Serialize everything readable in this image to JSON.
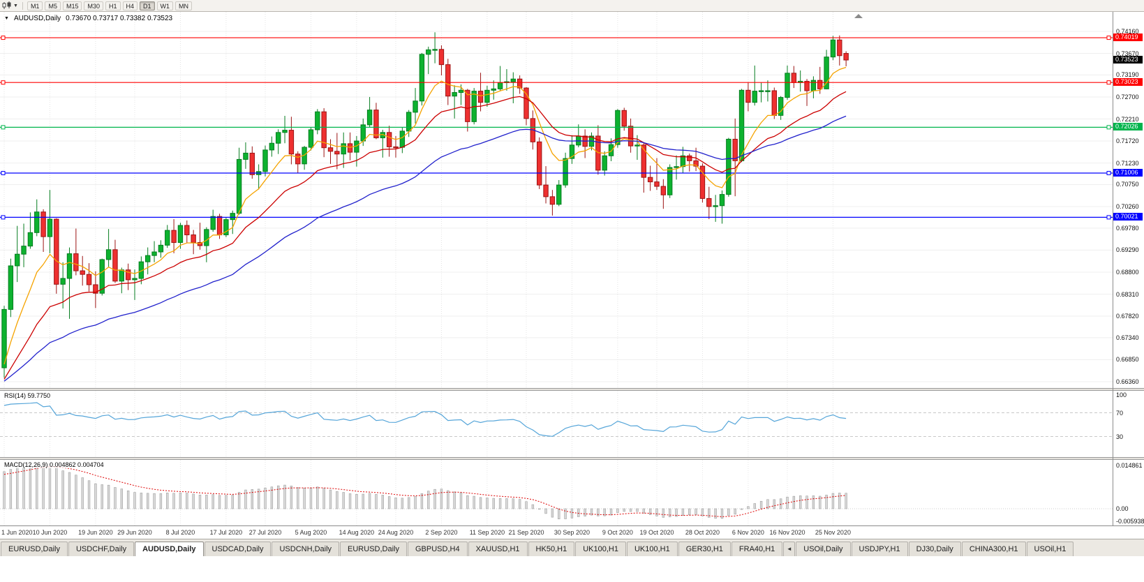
{
  "toolbar": {
    "chart_type_icon": "candlestick-chart-icon",
    "dropdown_glyph": "▼",
    "timeframes": [
      "M1",
      "M5",
      "M15",
      "M30",
      "H1",
      "H4",
      "D1",
      "W1",
      "MN"
    ],
    "active_timeframe": "D1"
  },
  "chart_header": {
    "marker": "▼",
    "symbol": "AUDUSD,Daily",
    "ohlc": "0.73670 0.73717 0.73382 0.73523"
  },
  "price_axis": {
    "ticks": [
      "0.74160",
      "0.73670",
      "0.73190",
      "0.72700",
      "0.72210",
      "0.71720",
      "0.71230",
      "0.70750",
      "0.70260",
      "0.69780",
      "0.69290",
      "0.68800",
      "0.68310",
      "0.67820",
      "0.67340",
      "0.66850",
      "0.66360"
    ]
  },
  "hlines": [
    {
      "value": 0.74019,
      "label": "0.74019",
      "color": "#ff0000"
    },
    {
      "value": 0.73023,
      "label": "0.73023",
      "color": "#ff0000"
    },
    {
      "value": 0.72026,
      "label": "0.72026",
      "color": "#00b44c"
    },
    {
      "value": 0.71006,
      "label": "0.71006",
      "color": "#0000ff"
    },
    {
      "value": 0.70021,
      "label": "0.70021",
      "color": "#0000ff"
    }
  ],
  "price_tag": {
    "value": 0.73523,
    "label": "0.73523",
    "bg": "#000000"
  },
  "rsi_panel": {
    "label": "RSI(14) 59.7750",
    "axis": [
      "100",
      "70",
      "30"
    ],
    "line_color": "#55a5d9"
  },
  "macd_panel": {
    "label": "MACD(12,26,9) 0.004862 0.004704",
    "axis": [
      "0.014861",
      "0.00",
      "-0.005938"
    ]
  },
  "date_axis": {
    "labels": [
      "1 Jun 2020",
      "10 Jun 2020",
      "19 Jun 2020",
      "29 Jun 2020",
      "8 Jul 2020",
      "17 Jul 2020",
      "27 Jul 2020",
      "5 Aug 2020",
      "14 Aug 2020",
      "24 Aug 2020",
      "2 Sep 2020",
      "11 Sep 2020",
      "21 Sep 2020",
      "30 Sep 2020",
      "9 Oct 2020",
      "19 Oct 2020",
      "28 Oct 2020",
      "6 Nov 2020",
      "16 Nov 2020",
      "25 Nov 2020"
    ],
    "tick_indices": [
      0,
      7,
      14,
      20,
      27,
      34,
      40,
      47,
      54,
      60,
      67,
      74,
      80,
      87,
      94,
      100,
      107,
      114,
      120,
      127
    ]
  },
  "tabs": {
    "items": [
      {
        "label": "EURUSD,Daily"
      },
      {
        "label": "USDCHF,Daily"
      },
      {
        "label": "AUDUSD,Daily",
        "active": true
      },
      {
        "label": "USDCAD,Daily"
      },
      {
        "label": "USDCNH,Daily"
      },
      {
        "label": "EURUSD,Daily"
      },
      {
        "label": "GBPUSD,H4"
      },
      {
        "label": "XAUUSD,H1"
      },
      {
        "label": "HK50,H1"
      },
      {
        "label": "UK100,H1"
      },
      {
        "label": "UK100,H1"
      },
      {
        "label": "GER30,H1"
      },
      {
        "label": "FRA40,H1"
      },
      {
        "label": "◄",
        "scroll": true
      },
      {
        "label": "USOil,Daily"
      },
      {
        "label": "USDJPY,H1"
      },
      {
        "label": "DJ30,Daily"
      },
      {
        "label": "CHINA300,H1"
      },
      {
        "label": "USOil,H1"
      }
    ]
  },
  "chart_data": {
    "type": "candlestick",
    "symbol": "AUDUSD",
    "timeframe": "Daily",
    "first_candle_date": "1 Jun 2020",
    "last_candle_date": "27 Nov 2020",
    "visible_price_range": {
      "top_tick": 0.7416,
      "bottom_tick": 0.6636
    },
    "current_ohlc": {
      "open": 0.7367,
      "high": 0.73717,
      "low": 0.73382,
      "close": 0.73523
    },
    "overlays": [
      {
        "name": "ma-fast",
        "type": "ema",
        "period": 8,
        "color": "#f5a300"
      },
      {
        "name": "ma-mid",
        "type": "ema",
        "period": 20,
        "color": "#cc0000"
      },
      {
        "name": "ma-slow",
        "type": "ema",
        "period": 45,
        "color": "#2121cc"
      }
    ],
    "indicators": [
      {
        "name": "RSI",
        "params": "14",
        "current": "59.7750",
        "levels": [
          100,
          70,
          30
        ]
      },
      {
        "name": "MACD",
        "params": "12,26,9",
        "current_main": "0.004862",
        "current_signal": "0.004704",
        "axis_max": 0.014861,
        "axis_min": -0.005938
      }
    ],
    "candles": [
      [
        0.6667,
        0.6805,
        0.6645,
        0.6797
      ],
      [
        0.6797,
        0.691,
        0.678,
        0.6894
      ],
      [
        0.6894,
        0.6983,
        0.6858,
        0.692
      ],
      [
        0.692,
        0.6988,
        0.6891,
        0.6938
      ],
      [
        0.6938,
        0.7013,
        0.6932,
        0.6968
      ],
      [
        0.6968,
        0.7042,
        0.696,
        0.7014
      ],
      [
        0.7014,
        0.702,
        0.6925,
        0.6959
      ],
      [
        0.6959,
        0.7063,
        0.6922,
        0.6998
      ],
      [
        0.6998,
        0.7,
        0.6832,
        0.6853
      ],
      [
        0.6853,
        0.6902,
        0.6799,
        0.6866
      ],
      [
        0.6866,
        0.6935,
        0.6776,
        0.6921
      ],
      [
        0.6921,
        0.6977,
        0.6873,
        0.6883
      ],
      [
        0.6883,
        0.6916,
        0.685,
        0.6875
      ],
      [
        0.6875,
        0.69,
        0.6837,
        0.6852
      ],
      [
        0.6852,
        0.6882,
        0.68,
        0.6833
      ],
      [
        0.6833,
        0.691,
        0.6828,
        0.6908
      ],
      [
        0.6908,
        0.6976,
        0.689,
        0.693
      ],
      [
        0.693,
        0.6952,
        0.6856,
        0.686
      ],
      [
        0.686,
        0.689,
        0.6833,
        0.6885
      ],
      [
        0.6885,
        0.6899,
        0.684,
        0.6863
      ],
      [
        0.6863,
        0.6886,
        0.6818,
        0.6866
      ],
      [
        0.6866,
        0.6915,
        0.6853,
        0.6903
      ],
      [
        0.6903,
        0.6935,
        0.6875,
        0.6917
      ],
      [
        0.6917,
        0.6949,
        0.6902,
        0.6925
      ],
      [
        0.6925,
        0.6951,
        0.6912,
        0.694
      ],
      [
        0.694,
        0.6985,
        0.6934,
        0.6973
      ],
      [
        0.6973,
        0.6998,
        0.6922,
        0.6946
      ],
      [
        0.6946,
        0.699,
        0.6932,
        0.6984
      ],
      [
        0.6984,
        0.6995,
        0.6945,
        0.6963
      ],
      [
        0.6963,
        0.6974,
        0.692,
        0.6946
      ],
      [
        0.6946,
        0.699,
        0.693,
        0.6939
      ],
      [
        0.6939,
        0.698,
        0.6902,
        0.6975
      ],
      [
        0.6975,
        0.7019,
        0.697,
        0.7004
      ],
      [
        0.7004,
        0.701,
        0.6954,
        0.6963
      ],
      [
        0.6963,
        0.7002,
        0.6958,
        0.6997
      ],
      [
        0.6997,
        0.7017,
        0.6965,
        0.7011
      ],
      [
        0.7011,
        0.7157,
        0.7008,
        0.7131
      ],
      [
        0.7131,
        0.7169,
        0.711,
        0.7145
      ],
      [
        0.7145,
        0.716,
        0.7088,
        0.7097
      ],
      [
        0.7097,
        0.712,
        0.7064,
        0.7104
      ],
      [
        0.7104,
        0.7162,
        0.7093,
        0.7152
      ],
      [
        0.7152,
        0.7182,
        0.7137,
        0.7167
      ],
      [
        0.7167,
        0.7198,
        0.7143,
        0.7191
      ],
      [
        0.7191,
        0.7228,
        0.7167,
        0.7196
      ],
      [
        0.7196,
        0.7226,
        0.712,
        0.7143
      ],
      [
        0.7143,
        0.7149,
        0.71,
        0.7121
      ],
      [
        0.7121,
        0.7161,
        0.7108,
        0.7158
      ],
      [
        0.7158,
        0.7202,
        0.7151,
        0.7197
      ],
      [
        0.7197,
        0.7243,
        0.7187,
        0.7237
      ],
      [
        0.7237,
        0.7245,
        0.7136,
        0.7157
      ],
      [
        0.7157,
        0.7176,
        0.7121,
        0.7149
      ],
      [
        0.7149,
        0.719,
        0.7109,
        0.7143
      ],
      [
        0.7143,
        0.7191,
        0.7112,
        0.7166
      ],
      [
        0.7166,
        0.7191,
        0.7129,
        0.7147
      ],
      [
        0.7147,
        0.7183,
        0.7115,
        0.7172
      ],
      [
        0.7172,
        0.7222,
        0.7161,
        0.7208
      ],
      [
        0.7208,
        0.727,
        0.7202,
        0.7241
      ],
      [
        0.7241,
        0.7257,
        0.7176,
        0.7179
      ],
      [
        0.7179,
        0.7197,
        0.7135,
        0.7191
      ],
      [
        0.7191,
        0.7206,
        0.7137,
        0.7159
      ],
      [
        0.7159,
        0.7183,
        0.7135,
        0.7158
      ],
      [
        0.7158,
        0.7203,
        0.7145,
        0.7194
      ],
      [
        0.7194,
        0.7241,
        0.7181,
        0.7236
      ],
      [
        0.7236,
        0.729,
        0.7211,
        0.7261
      ],
      [
        0.7261,
        0.7368,
        0.7251,
        0.7365
      ],
      [
        0.7365,
        0.7382,
        0.7321,
        0.7375
      ],
      [
        0.7375,
        0.7414,
        0.7345,
        0.7376
      ],
      [
        0.7376,
        0.7385,
        0.7318,
        0.7342
      ],
      [
        0.7342,
        0.7355,
        0.7252,
        0.7272
      ],
      [
        0.7272,
        0.7296,
        0.7222,
        0.728
      ],
      [
        0.728,
        0.7298,
        0.7252,
        0.7285
      ],
      [
        0.7285,
        0.7288,
        0.7193,
        0.7215
      ],
      [
        0.7215,
        0.729,
        0.7209,
        0.7283
      ],
      [
        0.7283,
        0.7324,
        0.7238,
        0.7258
      ],
      [
        0.7258,
        0.7295,
        0.7248,
        0.7285
      ],
      [
        0.7285,
        0.7307,
        0.7264,
        0.7288
      ],
      [
        0.7288,
        0.7339,
        0.7283,
        0.7302
      ],
      [
        0.7302,
        0.7332,
        0.7284,
        0.7304
      ],
      [
        0.7304,
        0.7325,
        0.7256,
        0.731
      ],
      [
        0.731,
        0.7318,
        0.7277,
        0.729
      ],
      [
        0.729,
        0.7292,
        0.7207,
        0.7222
      ],
      [
        0.7222,
        0.724,
        0.7153,
        0.717
      ],
      [
        0.717,
        0.718,
        0.7065,
        0.7074
      ],
      [
        0.7074,
        0.7116,
        0.7033,
        0.7048
      ],
      [
        0.7048,
        0.7063,
        0.7006,
        0.7031
      ],
      [
        0.7031,
        0.7085,
        0.7027,
        0.7074
      ],
      [
        0.7074,
        0.7146,
        0.7068,
        0.7133
      ],
      [
        0.7133,
        0.7185,
        0.7121,
        0.7163
      ],
      [
        0.7163,
        0.7209,
        0.7158,
        0.7183
      ],
      [
        0.7183,
        0.7198,
        0.7134,
        0.716
      ],
      [
        0.716,
        0.7191,
        0.7151,
        0.7183
      ],
      [
        0.7183,
        0.7207,
        0.7097,
        0.7107
      ],
      [
        0.7107,
        0.7149,
        0.7095,
        0.7139
      ],
      [
        0.7139,
        0.7178,
        0.7127,
        0.7164
      ],
      [
        0.7164,
        0.7243,
        0.7157,
        0.724
      ],
      [
        0.724,
        0.7246,
        0.7195,
        0.7205
      ],
      [
        0.7205,
        0.7222,
        0.7146,
        0.7161
      ],
      [
        0.7161,
        0.7185,
        0.713,
        0.7163
      ],
      [
        0.7163,
        0.7168,
        0.7057,
        0.7091
      ],
      [
        0.7091,
        0.7117,
        0.7061,
        0.7081
      ],
      [
        0.7081,
        0.7134,
        0.7063,
        0.7071
      ],
      [
        0.7071,
        0.7087,
        0.7021,
        0.7052
      ],
      [
        0.7052,
        0.712,
        0.7045,
        0.7113
      ],
      [
        0.7113,
        0.714,
        0.7086,
        0.7115
      ],
      [
        0.7115,
        0.7159,
        0.7101,
        0.7139
      ],
      [
        0.7139,
        0.7144,
        0.7104,
        0.7128
      ],
      [
        0.7128,
        0.7157,
        0.7105,
        0.7116
      ],
      [
        0.7116,
        0.7122,
        0.7035,
        0.7044
      ],
      [
        0.7044,
        0.707,
        0.6998,
        0.7026
      ],
      [
        0.7026,
        0.7052,
        0.6992,
        0.7028
      ],
      [
        0.7028,
        0.7062,
        0.6988,
        0.7053
      ],
      [
        0.7053,
        0.7179,
        0.7048,
        0.7176
      ],
      [
        0.7176,
        0.7222,
        0.7049,
        0.7128
      ],
      [
        0.7128,
        0.7288,
        0.7125,
        0.7285
      ],
      [
        0.7285,
        0.7302,
        0.7238,
        0.7258
      ],
      [
        0.7258,
        0.734,
        0.7251,
        0.7283
      ],
      [
        0.7283,
        0.7302,
        0.7258,
        0.7284
      ],
      [
        0.7284,
        0.7307,
        0.726,
        0.7284
      ],
      [
        0.7284,
        0.7291,
        0.7221,
        0.7229
      ],
      [
        0.7229,
        0.7272,
        0.7219,
        0.7269
      ],
      [
        0.7269,
        0.734,
        0.7264,
        0.7323
      ],
      [
        0.7323,
        0.7339,
        0.729,
        0.7302
      ],
      [
        0.7302,
        0.7329,
        0.7282,
        0.7305
      ],
      [
        0.7305,
        0.731,
        0.725,
        0.7284
      ],
      [
        0.7284,
        0.7316,
        0.7267,
        0.7307
      ],
      [
        0.7307,
        0.7337,
        0.7277,
        0.7288
      ],
      [
        0.7288,
        0.7375,
        0.7287,
        0.7359
      ],
      [
        0.7359,
        0.7406,
        0.7352,
        0.7397
      ],
      [
        0.7397,
        0.7407,
        0.734,
        0.7362
      ],
      [
        0.7367,
        0.73717,
        0.73382,
        0.73523
      ]
    ]
  }
}
